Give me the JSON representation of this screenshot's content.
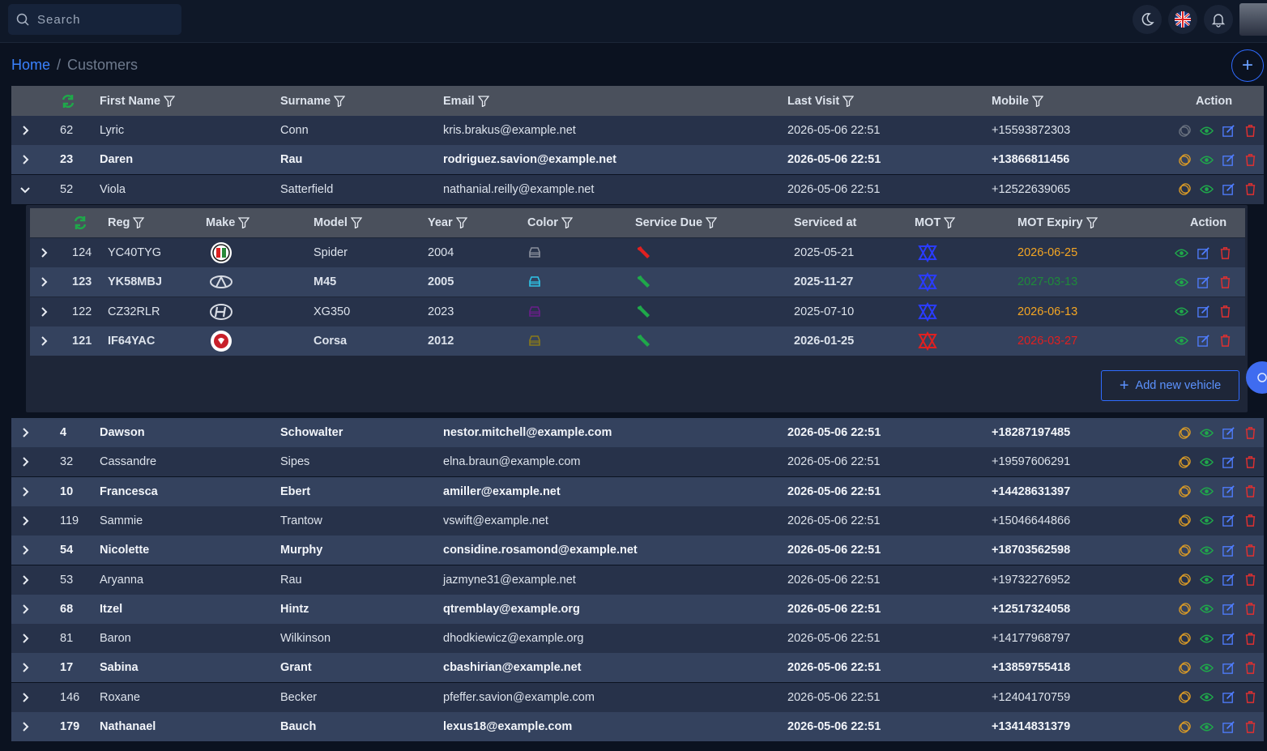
{
  "search": {
    "placeholder": "Search"
  },
  "breadcrumb": {
    "home": "Home",
    "separator": "/",
    "current": "Customers"
  },
  "customers": {
    "headers": {
      "first_name": "First Name",
      "surname": "Surname",
      "email": "Email",
      "last_visit": "Last Visit",
      "mobile": "Mobile",
      "action": "Action"
    },
    "rows_top": [
      {
        "id": "62",
        "first": "Lyric",
        "surname": "Conn",
        "email": "kris.brakus@example.net",
        "visit": "2026-05-06 22:51",
        "mobile": "+15593872303"
      },
      {
        "id": "23",
        "first": "Daren",
        "surname": "Rau",
        "email": "rodriguez.savion@example.net",
        "visit": "2026-05-06 22:51",
        "mobile": "+13866811456"
      },
      {
        "id": "52",
        "first": "Viola",
        "surname": "Satterfield",
        "email": "nathanial.reilly@example.net",
        "visit": "2026-05-06 22:51",
        "mobile": "+12522639065"
      }
    ],
    "rows_bottom": [
      {
        "id": "4",
        "first": "Dawson",
        "surname": "Schowalter",
        "email": "nestor.mitchell@example.com",
        "visit": "2026-05-06 22:51",
        "mobile": "+18287197485"
      },
      {
        "id": "32",
        "first": "Cassandre",
        "surname": "Sipes",
        "email": "elna.braun@example.com",
        "visit": "2026-05-06 22:51",
        "mobile": "+19597606291"
      },
      {
        "id": "10",
        "first": "Francesca",
        "surname": "Ebert",
        "email": "amiller@example.net",
        "visit": "2026-05-06 22:51",
        "mobile": "+14428631397"
      },
      {
        "id": "119",
        "first": "Sammie",
        "surname": "Trantow",
        "email": "vswift@example.net",
        "visit": "2026-05-06 22:51",
        "mobile": "+15046644866"
      },
      {
        "id": "54",
        "first": "Nicolette",
        "surname": "Murphy",
        "email": "considine.rosamond@example.net",
        "visit": "2026-05-06 22:51",
        "mobile": "+18703562598"
      },
      {
        "id": "53",
        "first": "Aryanna",
        "surname": "Rau",
        "email": "jazmyne31@example.net",
        "visit": "2026-05-06 22:51",
        "mobile": "+19732276952"
      },
      {
        "id": "68",
        "first": "Itzel",
        "surname": "Hintz",
        "email": "qtremblay@example.org",
        "visit": "2026-05-06 22:51",
        "mobile": "+12517324058"
      },
      {
        "id": "81",
        "first": "Baron",
        "surname": "Wilkinson",
        "email": "dhodkiewicz@example.org",
        "visit": "2026-05-06 22:51",
        "mobile": "+14177968797"
      },
      {
        "id": "17",
        "first": "Sabina",
        "surname": "Grant",
        "email": "cbashirian@example.net",
        "visit": "2026-05-06 22:51",
        "mobile": "+13859755418"
      },
      {
        "id": "146",
        "first": "Roxane",
        "surname": "Becker",
        "email": "pfeffer.savion@example.com",
        "visit": "2026-05-06 22:51",
        "mobile": "+12404170759"
      },
      {
        "id": "179",
        "first": "Nathanael",
        "surname": "Bauch",
        "email": "lexus18@example.com",
        "visit": "2026-05-06 22:51",
        "mobile": "+13414831379"
      }
    ]
  },
  "vehicles": {
    "headers": {
      "reg": "Reg",
      "make": "Make",
      "model": "Model",
      "year": "Year",
      "color": "Color",
      "service_due": "Service Due",
      "serviced_at": "Serviced at",
      "mot": "MOT",
      "mot_expiry": "MOT Expiry",
      "action": "Action"
    },
    "rows": [
      {
        "id": "124",
        "reg": "YC40TYG",
        "make_icon": "alfa-romeo-logo-icon",
        "model": "Spider",
        "year": "2004",
        "car_color": "#8a909c",
        "wrench_color": "#e02020",
        "serviced": "2025-05-21",
        "mot_color": "#2a3cff",
        "expiry": "2026-06-25",
        "expiry_color": "#f5a623"
      },
      {
        "id": "123",
        "reg": "YK58MBJ",
        "make_icon": "infiniti-logo-icon",
        "model": "M45",
        "year": "2005",
        "car_color": "#2ec4e8",
        "wrench_color": "#1fa84a",
        "serviced": "2025-11-27",
        "mot_color": "#2a3cff",
        "expiry": "2027-03-13",
        "expiry_color": "#1e8a3a"
      },
      {
        "id": "122",
        "reg": "CZ32RLR",
        "make_icon": "hyundai-logo-icon",
        "model": "XG350",
        "year": "2023",
        "car_color": "#6a1e8a",
        "wrench_color": "#1fa84a",
        "serviced": "2025-07-10",
        "mot_color": "#2a3cff",
        "expiry": "2026-06-13",
        "expiry_color": "#f5a623"
      },
      {
        "id": "121",
        "reg": "IF64YAC",
        "make_icon": "vauxhall-logo-icon",
        "model": "Corsa",
        "year": "2012",
        "car_color": "#8a7a1a",
        "wrench_color": "#1fa84a",
        "serviced": "2026-01-25",
        "mot_color": "#e02020",
        "expiry": "2026-03-27",
        "expiry_color": "#e02020"
      }
    ],
    "add_label": "Add new vehicle"
  }
}
